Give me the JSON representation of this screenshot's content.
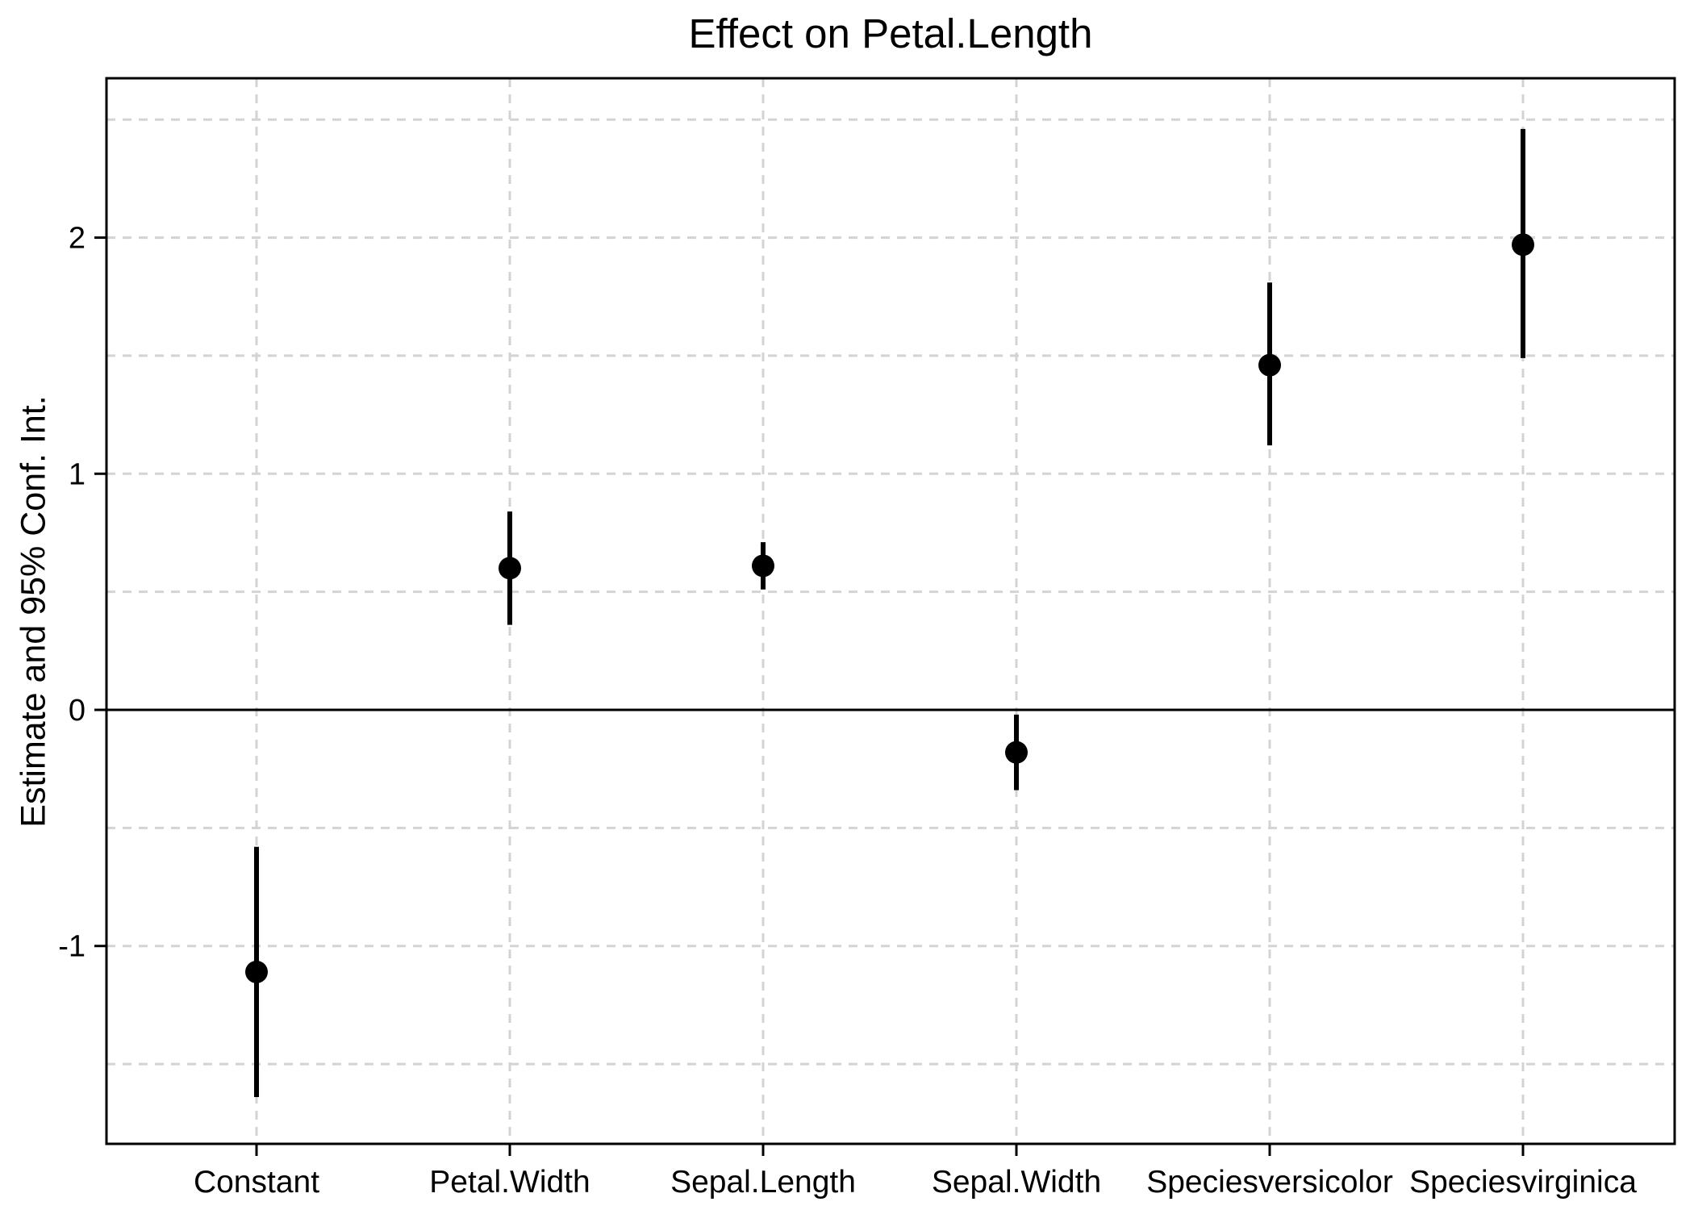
{
  "title": "Effect on Petal.Length",
  "chart_data": {
    "type": "scatter",
    "variant": "coefficient_plot_with_95ci_error_bars",
    "title": "Effect on Petal.Length",
    "xlabel": "",
    "ylabel": "Estimate and 95% Conf. Int.",
    "categories": [
      "Constant",
      "Petal.Width",
      "Sepal.Length",
      "Sepal.Width",
      "Speciesversicolor",
      "Speciesvirginica"
    ],
    "series": [
      {
        "name": "estimate",
        "values": [
          -1.11,
          0.6,
          0.61,
          -0.18,
          1.46,
          1.97
        ]
      },
      {
        "name": "ci_lower_95",
        "values": [
          -1.64,
          0.36,
          0.51,
          -0.34,
          1.12,
          1.49
        ]
      },
      {
        "name": "ci_upper_95",
        "values": [
          -0.58,
          0.84,
          0.71,
          -0.02,
          1.81,
          2.46
        ]
      }
    ],
    "y_ticks": [
      2,
      1,
      0,
      -1
    ],
    "y_tick_labels": [
      "2",
      "1",
      "0",
      "-1"
    ],
    "y_gridlines": [
      2.5,
      2,
      1.5,
      1,
      0.5,
      -0.5,
      -1,
      -1.5
    ],
    "ylim": [
      -1.838,
      2.675
    ],
    "zero_reference_line": 0,
    "grid_style": "dashed",
    "legend_position": "none",
    "marker": "filled-circle",
    "colors": {
      "marker": "#000000",
      "error_bar": "#000000",
      "grid": "#d3d3d3",
      "axis": "#000000",
      "zero_line": "#000000",
      "background": "#ffffff"
    }
  }
}
